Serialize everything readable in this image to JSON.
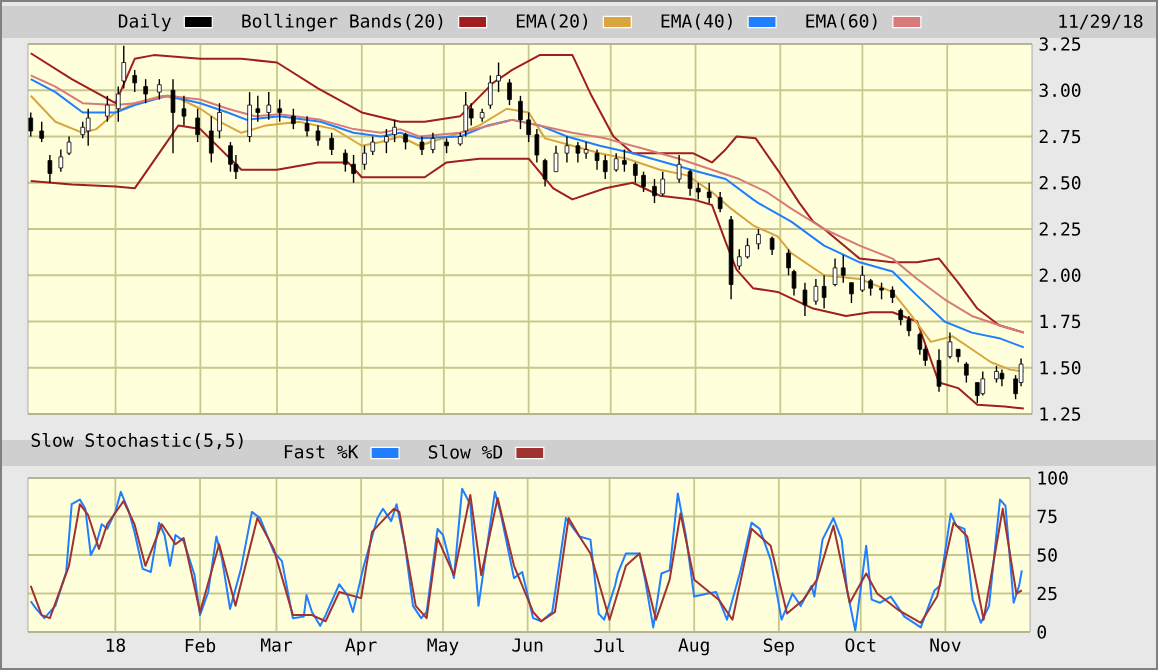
{
  "chart_data": [
    {
      "type": "candlestick",
      "xlim": [
        "2017-11-30",
        "2018-12-02"
      ],
      "xticks": [
        {
          "value": "2018-01-01",
          "label": null
        },
        {
          "value": "2018-02-01",
          "label": null
        },
        {
          "value": "2018-03-01",
          "label": null
        },
        {
          "value": "2018-04-01",
          "label": null
        },
        {
          "value": "2018-05-01",
          "label": null
        },
        {
          "value": "2018-06-01",
          "label": null
        },
        {
          "value": "2018-07-01",
          "label": null
        },
        {
          "value": "2018-08-01",
          "label": null
        },
        {
          "value": "2018-09-01",
          "label": null
        },
        {
          "value": "2018-10-01",
          "label": null
        },
        {
          "value": "2018-11-01",
          "label": null
        }
      ],
      "ylim": [
        1.25,
        3.25
      ],
      "yticks": [
        1.25,
        {
          "value": 1.5,
          "label": "1.50"
        },
        1.75,
        {
          "value": 2,
          "label": "2.00"
        },
        2.25,
        {
          "value": 2.5,
          "label": "2.50"
        },
        2.75,
        {
          "value": 3,
          "label": "3.00"
        },
        3.25
      ],
      "grid": true,
      "legend": "top left",
      "tick_labels": "y",
      "annotations": [
        "11/29/18"
      ],
      "series": [
        {
          "name": "Daily",
          "type": "candlestick",
          "color": "#000000",
          "x": [
            "2017-12-01",
            "2017-12-05",
            "2017-12-08",
            "2017-12-12",
            "2017-12-15",
            "2017-12-20",
            "2017-12-22",
            "2017-12-29",
            "2018-01-02",
            "2018-01-04",
            "2018-01-08",
            "2018-01-12",
            "2018-01-17",
            "2018-01-22",
            "2018-01-26",
            "2018-01-31",
            "2018-02-05",
            "2018-02-08",
            "2018-02-12",
            "2018-02-14",
            "2018-02-19",
            "2018-02-22",
            "2018-02-26",
            "2018-03-02",
            "2018-03-07",
            "2018-03-12",
            "2018-03-16",
            "2018-03-21",
            "2018-03-26",
            "2018-03-29",
            "2018-04-02",
            "2018-04-05",
            "2018-04-10",
            "2018-04-13",
            "2018-04-17",
            "2018-04-23",
            "2018-04-27",
            "2018-05-02",
            "2018-05-07",
            "2018-05-09",
            "2018-05-11",
            "2018-05-15",
            "2018-05-18",
            "2018-05-21",
            "2018-05-25",
            "2018-05-29",
            "2018-06-01",
            "2018-06-04",
            "2018-06-07",
            "2018-06-11",
            "2018-06-15",
            "2018-06-19",
            "2018-06-22",
            "2018-06-26",
            "2018-06-29",
            "2018-07-03",
            "2018-07-06",
            "2018-07-10",
            "2018-07-13",
            "2018-07-17",
            "2018-07-20",
            "2018-07-26",
            "2018-07-30",
            "2018-08-02",
            "2018-08-06",
            "2018-08-10",
            "2018-08-14",
            "2018-08-17",
            "2018-08-20",
            "2018-08-24",
            "2018-08-29",
            "2018-09-04",
            "2018-09-06",
            "2018-09-10",
            "2018-09-14",
            "2018-09-17",
            "2018-09-21",
            "2018-09-24",
            "2018-09-27",
            "2018-10-01",
            "2018-10-04",
            "2018-10-08",
            "2018-10-12",
            "2018-10-15",
            "2018-10-18",
            "2018-10-22",
            "2018-10-24",
            "2018-10-29",
            "2018-11-02",
            "2018-11-05",
            "2018-11-08",
            "2018-11-12",
            "2018-11-14",
            "2018-11-19",
            "2018-11-21",
            "2018-11-26",
            "2018-11-28"
          ],
          "ohlc": [
            [
              2.85,
              2.88,
              2.75,
              2.78
            ],
            [
              2.78,
              2.83,
              2.72,
              2.74
            ],
            [
              2.62,
              2.65,
              2.5,
              2.55
            ],
            [
              2.58,
              2.68,
              2.56,
              2.64
            ],
            [
              2.66,
              2.75,
              2.65,
              2.72
            ],
            [
              2.76,
              2.83,
              2.74,
              2.8
            ],
            [
              2.78,
              2.9,
              2.7,
              2.85
            ],
            [
              2.86,
              2.97,
              2.83,
              2.92
            ],
            [
              2.9,
              3.02,
              2.83,
              2.98
            ],
            [
              3.05,
              3.24,
              3.01,
              3.15
            ],
            [
              3.08,
              3.11,
              2.99,
              3.04
            ],
            [
              3.02,
              3.06,
              2.93,
              2.98
            ],
            [
              2.99,
              3.06,
              2.95,
              3.03
            ],
            [
              3.0,
              3.06,
              2.66,
              2.88
            ],
            [
              2.9,
              2.97,
              2.81,
              2.86
            ],
            [
              2.85,
              2.9,
              2.72,
              2.76
            ],
            [
              2.78,
              2.86,
              2.61,
              2.66
            ],
            [
              2.78,
              2.93,
              2.74,
              2.88
            ],
            [
              2.7,
              2.72,
              2.56,
              2.6
            ],
            [
              2.6,
              2.65,
              2.52,
              2.56
            ],
            [
              2.75,
              2.99,
              2.72,
              2.92
            ],
            [
              2.9,
              2.97,
              2.83,
              2.88
            ],
            [
              2.88,
              2.99,
              2.84,
              2.92
            ],
            [
              2.9,
              2.95,
              2.83,
              2.88
            ],
            [
              2.86,
              2.9,
              2.79,
              2.82
            ],
            [
              2.82,
              2.86,
              2.75,
              2.78
            ],
            [
              2.78,
              2.81,
              2.7,
              2.73
            ],
            [
              2.74,
              2.77,
              2.65,
              2.68
            ],
            [
              2.66,
              2.68,
              2.56,
              2.6
            ],
            [
              2.6,
              2.65,
              2.5,
              2.55
            ],
            [
              2.6,
              2.7,
              2.57,
              2.66
            ],
            [
              2.67,
              2.75,
              2.65,
              2.72
            ],
            [
              2.72,
              2.79,
              2.66,
              2.75
            ],
            [
              2.76,
              2.84,
              2.72,
              2.8
            ],
            [
              2.76,
              2.77,
              2.68,
              2.72
            ],
            [
              2.72,
              2.75,
              2.65,
              2.68
            ],
            [
              2.68,
              2.77,
              2.66,
              2.74
            ],
            [
              2.72,
              2.74,
              2.66,
              2.7
            ],
            [
              2.71,
              2.77,
              2.7,
              2.75
            ],
            [
              2.78,
              2.99,
              2.75,
              2.92
            ],
            [
              2.9,
              2.93,
              2.81,
              2.85
            ],
            [
              2.85,
              2.9,
              2.83,
              2.88
            ],
            [
              2.92,
              3.08,
              2.9,
              3.04
            ],
            [
              3.05,
              3.15,
              2.99,
              3.08
            ],
            [
              3.04,
              3.06,
              2.92,
              2.95
            ],
            [
              2.94,
              2.97,
              2.79,
              2.84
            ],
            [
              2.84,
              2.88,
              2.72,
              2.76
            ],
            [
              2.76,
              2.79,
              2.61,
              2.65
            ],
            [
              2.62,
              2.63,
              2.48,
              2.52
            ],
            [
              2.56,
              2.7,
              2.56,
              2.66
            ],
            [
              2.66,
              2.75,
              2.61,
              2.7
            ],
            [
              2.7,
              2.72,
              2.61,
              2.66
            ],
            [
              2.66,
              2.72,
              2.63,
              2.68
            ],
            [
              2.66,
              2.68,
              2.57,
              2.62
            ],
            [
              2.62,
              2.65,
              2.52,
              2.56
            ],
            [
              2.57,
              2.66,
              2.56,
              2.63
            ],
            [
              2.62,
              2.68,
              2.56,
              2.6
            ],
            [
              2.6,
              2.61,
              2.5,
              2.54
            ],
            [
              2.54,
              2.56,
              2.45,
              2.48
            ],
            [
              2.48,
              2.52,
              2.39,
              2.43
            ],
            [
              2.44,
              2.56,
              2.43,
              2.52
            ],
            [
              2.52,
              2.65,
              2.5,
              2.6
            ],
            [
              2.56,
              2.57,
              2.43,
              2.47
            ],
            [
              2.47,
              2.5,
              2.41,
              2.45
            ],
            [
              2.45,
              2.5,
              2.39,
              2.42
            ],
            [
              2.42,
              2.45,
              2.34,
              2.36
            ],
            [
              2.3,
              2.32,
              1.87,
              1.95
            ],
            [
              2.05,
              2.14,
              2.03,
              2.1
            ],
            [
              2.1,
              2.2,
              2.09,
              2.16
            ],
            [
              2.17,
              2.25,
              2.14,
              2.22
            ],
            [
              2.2,
              2.21,
              2.11,
              2.14
            ],
            [
              2.12,
              2.14,
              2.0,
              2.04
            ],
            [
              2.02,
              2.03,
              1.89,
              1.93
            ],
            [
              1.92,
              1.96,
              1.78,
              1.84
            ],
            [
              1.86,
              1.98,
              1.84,
              1.94
            ],
            [
              1.94,
              2.0,
              1.82,
              1.88
            ],
            [
              1.95,
              2.09,
              1.94,
              2.04
            ],
            [
              2.04,
              2.11,
              1.96,
              2.0
            ],
            [
              1.96,
              1.96,
              1.85,
              1.9
            ],
            [
              1.92,
              2.05,
              1.91,
              2.0
            ],
            [
              1.97,
              1.98,
              1.89,
              1.93
            ],
            [
              1.93,
              1.96,
              1.87,
              1.92
            ],
            [
              1.92,
              1.94,
              1.85,
              1.88
            ],
            [
              1.81,
              1.82,
              1.73,
              1.76
            ],
            [
              1.76,
              1.78,
              1.67,
              1.7
            ],
            [
              1.68,
              1.69,
              1.57,
              1.6
            ],
            [
              1.6,
              1.62,
              1.51,
              1.54
            ],
            [
              1.54,
              1.6,
              1.37,
              1.4
            ],
            [
              1.56,
              1.69,
              1.55,
              1.64
            ],
            [
              1.6,
              1.6,
              1.53,
              1.56
            ],
            [
              1.52,
              1.53,
              1.42,
              1.46
            ],
            [
              1.42,
              1.42,
              1.31,
              1.35
            ],
            [
              1.36,
              1.48,
              1.35,
              1.44
            ],
            [
              1.44,
              1.51,
              1.42,
              1.48
            ],
            [
              1.47,
              1.49,
              1.4,
              1.44
            ],
            [
              1.44,
              1.46,
              1.33,
              1.36
            ],
            [
              1.42,
              1.55,
              1.4,
              1.52
            ]
          ]
        },
        {
          "name": "Bollinger Bands(20)",
          "type": "line",
          "color": "#a01e1e",
          "x": [
            "2017-12-01",
            "2017-12-16",
            "2018-01-01",
            "2018-01-08",
            "2018-01-15",
            "2018-02-01",
            "2018-02-16",
            "2018-03-01",
            "2018-03-16",
            "2018-04-01",
            "2018-04-15",
            "2018-04-24",
            "2018-05-07",
            "2018-05-19",
            "2018-05-26",
            "2018-06-05",
            "2018-06-17",
            "2018-06-24",
            "2018-07-02",
            "2018-07-09",
            "2018-07-31",
            "2018-08-07",
            "2018-08-12",
            "2018-08-16",
            "2018-08-23",
            "2018-08-31",
            "2018-09-08",
            "2018-09-13",
            "2018-09-17",
            "2018-09-30",
            "2018-10-12",
            "2018-10-21",
            "2018-10-29",
            "2018-11-05",
            "2018-11-12",
            "2018-11-20",
            "2018-11-29"
          ],
          "values": [
            3.2,
            3.06,
            2.93,
            3.17,
            3.19,
            3.17,
            3.17,
            3.15,
            3.01,
            2.88,
            2.83,
            2.83,
            2.86,
            3.04,
            3.11,
            3.19,
            3.19,
            2.97,
            2.75,
            2.66,
            2.66,
            2.61,
            2.68,
            2.75,
            2.74,
            2.57,
            2.39,
            2.29,
            2.25,
            2.09,
            2.07,
            2.07,
            2.09,
            1.96,
            1.82,
            1.73,
            1.69
          ]
        },
        {
          "type": "line",
          "color": "#a01e1e",
          "x": [
            "2017-12-01",
            "2017-12-16",
            "2018-01-01",
            "2018-01-08",
            "2018-01-24",
            "2018-02-01",
            "2018-02-16",
            "2018-03-01",
            "2018-03-16",
            "2018-03-27",
            "2018-04-01",
            "2018-04-15",
            "2018-04-24",
            "2018-05-02",
            "2018-05-14",
            "2018-06-01",
            "2018-06-10",
            "2018-06-17",
            "2018-06-29",
            "2018-07-09",
            "2018-07-19",
            "2018-07-31",
            "2018-08-07",
            "2018-08-12",
            "2018-08-16",
            "2018-08-22",
            "2018-08-31",
            "2018-09-13",
            "2018-09-25",
            "2018-10-04",
            "2018-10-12",
            "2018-10-21",
            "2018-10-29",
            "2018-11-05",
            "2018-11-12",
            "2018-11-22",
            "2018-11-29"
          ],
          "values": [
            2.51,
            2.49,
            2.48,
            2.47,
            2.81,
            2.79,
            2.57,
            2.57,
            2.61,
            2.61,
            2.53,
            2.53,
            2.53,
            2.61,
            2.63,
            2.63,
            2.47,
            2.41,
            2.47,
            2.5,
            2.43,
            2.41,
            2.38,
            2.18,
            2.03,
            1.93,
            1.91,
            1.82,
            1.78,
            1.8,
            1.8,
            1.75,
            1.42,
            1.39,
            1.3,
            1.29,
            1.28
          ]
        },
        {
          "name": "EMA(20)",
          "type": "line",
          "color": "#d9a53f",
          "x": [
            "2017-12-01",
            "2017-12-10",
            "2017-12-20",
            "2017-12-25",
            "2018-01-01",
            "2018-01-08",
            "2018-01-18",
            "2018-01-25",
            "2018-02-01",
            "2018-02-08",
            "2018-02-16",
            "2018-02-25",
            "2018-03-09",
            "2018-03-22",
            "2018-04-01",
            "2018-04-08",
            "2018-04-15",
            "2018-04-22",
            "2018-05-07",
            "2018-05-14",
            "2018-05-24",
            "2018-06-01",
            "2018-06-07",
            "2018-06-17",
            "2018-06-27",
            "2018-07-07",
            "2018-07-19",
            "2018-07-29",
            "2018-08-07",
            "2018-08-14",
            "2018-08-22",
            "2018-08-31",
            "2018-09-05",
            "2018-09-17",
            "2018-09-30",
            "2018-10-12",
            "2018-10-19",
            "2018-10-26",
            "2018-11-03",
            "2018-11-10",
            "2018-11-17",
            "2018-11-24",
            "2018-11-29"
          ],
          "values": [
            2.97,
            2.83,
            2.77,
            2.79,
            2.88,
            2.93,
            2.97,
            2.95,
            2.9,
            2.83,
            2.77,
            2.81,
            2.83,
            2.79,
            2.7,
            2.72,
            2.75,
            2.7,
            2.77,
            2.81,
            2.9,
            2.88,
            2.74,
            2.7,
            2.66,
            2.63,
            2.57,
            2.54,
            2.45,
            2.36,
            2.27,
            2.21,
            2.12,
            2.0,
            1.98,
            1.91,
            1.78,
            1.64,
            1.67,
            1.6,
            1.53,
            1.49,
            1.48
          ]
        },
        {
          "name": "EMA(40)",
          "type": "line",
          "color": "#1f7fff",
          "x": [
            "2017-12-01",
            "2017-12-10",
            "2017-12-20",
            "2018-01-01",
            "2018-01-08",
            "2018-01-20",
            "2018-02-01",
            "2018-02-11",
            "2018-02-18",
            "2018-03-02",
            "2018-03-17",
            "2018-03-29",
            "2018-04-08",
            "2018-04-15",
            "2018-04-22",
            "2018-05-07",
            "2018-05-17",
            "2018-05-26",
            "2018-06-05",
            "2018-06-15",
            "2018-06-27",
            "2018-07-09",
            "2018-07-21",
            "2018-08-02",
            "2018-08-12",
            "2018-08-22",
            "2018-08-24",
            "2018-09-05",
            "2018-09-17",
            "2018-09-30",
            "2018-10-12",
            "2018-10-21",
            "2018-10-31",
            "2018-11-10",
            "2018-11-20",
            "2018-11-29"
          ],
          "values": [
            3.06,
            2.99,
            2.88,
            2.88,
            2.92,
            2.97,
            2.93,
            2.88,
            2.84,
            2.86,
            2.83,
            2.77,
            2.75,
            2.77,
            2.74,
            2.75,
            2.81,
            2.84,
            2.81,
            2.75,
            2.7,
            2.66,
            2.61,
            2.56,
            2.52,
            2.41,
            2.39,
            2.29,
            2.16,
            2.07,
            2.02,
            1.89,
            1.75,
            1.69,
            1.66,
            1.61
          ]
        },
        {
          "name": "EMA(60)",
          "type": "line",
          "color": "#d97a7a",
          "x": [
            "2017-12-01",
            "2017-12-10",
            "2017-12-20",
            "2018-01-01",
            "2018-01-08",
            "2018-01-20",
            "2018-02-01",
            "2018-02-11",
            "2018-02-21",
            "2018-03-02",
            "2018-03-17",
            "2018-03-29",
            "2018-04-08",
            "2018-04-15",
            "2018-04-22",
            "2018-05-07",
            "2018-05-26",
            "2018-06-05",
            "2018-06-17",
            "2018-06-29",
            "2018-07-14",
            "2018-07-26",
            "2018-08-07",
            "2018-08-17",
            "2018-08-27",
            "2018-09-05",
            "2018-09-17",
            "2018-09-30",
            "2018-10-12",
            "2018-10-21",
            "2018-10-31",
            "2018-11-10",
            "2018-11-20",
            "2018-11-29"
          ],
          "values": [
            3.08,
            3.02,
            2.93,
            2.92,
            2.93,
            2.97,
            2.95,
            2.9,
            2.86,
            2.87,
            2.84,
            2.79,
            2.77,
            2.79,
            2.75,
            2.77,
            2.84,
            2.81,
            2.77,
            2.74,
            2.68,
            2.63,
            2.57,
            2.52,
            2.45,
            2.36,
            2.25,
            2.16,
            2.09,
            1.98,
            1.87,
            1.78,
            1.73,
            1.69
          ]
        }
      ]
    },
    {
      "type": "line",
      "title": "Slow Stochastic(5,5)",
      "xlim": [
        "2017-11-30",
        "2018-12-02"
      ],
      "xticks": [
        {
          "value": "2018-01-01",
          "label": "18"
        },
        {
          "value": "2018-02-01",
          "label": "Feb"
        },
        {
          "value": "2018-03-01",
          "label": "Mar"
        },
        {
          "value": "2018-04-01",
          "label": "Apr"
        },
        {
          "value": "2018-05-01",
          "label": "May"
        },
        {
          "value": "2018-06-01",
          "label": "Jun"
        },
        {
          "value": "2018-07-01",
          "label": "Jul"
        },
        {
          "value": "2018-08-01",
          "label": "Aug"
        },
        {
          "value": "2018-09-01",
          "label": "Sep"
        },
        {
          "value": "2018-10-01",
          "label": "Oct"
        },
        {
          "value": "2018-11-01",
          "label": "Nov"
        }
      ],
      "ylim": [
        0,
        100
      ],
      "yticks": [
        0,
        25,
        50,
        75,
        100
      ],
      "grid": true,
      "legend": "top left",
      "series": [
        {
          "name": "Fast %K",
          "color": "#1f7fff",
          "x": [
            "2017-12-01",
            "2017-12-03",
            "2017-12-06",
            "2017-12-10",
            "2017-12-14",
            "2017-12-16",
            "2017-12-19",
            "2017-12-21",
            "2017-12-23",
            "2017-12-25",
            "2017-12-27",
            "2017-12-29",
            "2018-01-01",
            "2018-01-03",
            "2018-01-06",
            "2018-01-08",
            "2018-01-11",
            "2018-01-14",
            "2018-01-17",
            "2018-01-19",
            "2018-01-21",
            "2018-01-23",
            "2018-01-26",
            "2018-01-30",
            "2018-02-01",
            "2018-02-04",
            "2018-02-07",
            "2018-02-09",
            "2018-02-12",
            "2018-02-16",
            "2018-02-20",
            "2018-02-23",
            "2018-02-28",
            "2018-03-03",
            "2018-03-07",
            "2018-03-11",
            "2018-03-12",
            "2018-03-14",
            "2018-03-17",
            "2018-03-19",
            "2018-03-24",
            "2018-03-27",
            "2018-03-29",
            "2018-04-02",
            "2018-04-07",
            "2018-04-09",
            "2018-04-12",
            "2018-04-14",
            "2018-04-17",
            "2018-04-20",
            "2018-04-23",
            "2018-04-25",
            "2018-04-29",
            "2018-05-01",
            "2018-05-05",
            "2018-05-08",
            "2018-05-11",
            "2018-05-14",
            "2018-05-20",
            "2018-05-22",
            "2018-05-27",
            "2018-05-30",
            "2018-06-03",
            "2018-06-06",
            "2018-06-10",
            "2018-06-15",
            "2018-06-20",
            "2018-06-24",
            "2018-06-27",
            "2018-06-29",
            "2018-07-03",
            "2018-07-04",
            "2018-07-07",
            "2018-07-12",
            "2018-07-14",
            "2018-07-17",
            "2018-07-20",
            "2018-07-23",
            "2018-07-26",
            "2018-07-29",
            "2018-08-01",
            "2018-08-06",
            "2018-08-09",
            "2018-08-13",
            "2018-08-18",
            "2018-08-22",
            "2018-08-25",
            "2018-08-29",
            "2018-09-02",
            "2018-09-06",
            "2018-09-09",
            "2018-09-13",
            "2018-09-14",
            "2018-09-17",
            "2018-09-21",
            "2018-09-24",
            "2018-09-26",
            "2018-09-29",
            "2018-10-03",
            "2018-10-05",
            "2018-10-08",
            "2018-10-12",
            "2018-10-17",
            "2018-10-23",
            "2018-10-28",
            "2018-10-30",
            "2018-11-03",
            "2018-11-05",
            "2018-11-08",
            "2018-11-11",
            "2018-11-14",
            "2018-11-17",
            "2018-11-21",
            "2018-11-23",
            "2018-11-26",
            "2018-11-28",
            "2018-11-29"
          ],
          "values": [
            20,
            15,
            9,
            17,
            39,
            83,
            86,
            80,
            50,
            57,
            70,
            67,
            78,
            91,
            78,
            65,
            41,
            39,
            71,
            63,
            43,
            63,
            59,
            37,
            11,
            26,
            62,
            48,
            15,
            41,
            78,
            74,
            52,
            46,
            9,
            10,
            24,
            13,
            4,
            11,
            31,
            24,
            13,
            43,
            74,
            80,
            72,
            83,
            57,
            17,
            9,
            13,
            67,
            63,
            35,
            93,
            83,
            17,
            91,
            78,
            35,
            39,
            9,
            7,
            13,
            74,
            62,
            60,
            12,
            8,
            30,
            38,
            51,
            51,
            34,
            3,
            38,
            40,
            90,
            62,
            23,
            25,
            26,
            8,
            40,
            71,
            67,
            47,
            8,
            25,
            17,
            30,
            23,
            60,
            74,
            60,
            27,
            1,
            56,
            21,
            19,
            23,
            10,
            3,
            27,
            30,
            77,
            69,
            67,
            21,
            6,
            17,
            86,
            82,
            19,
            30,
            40
          ]
        },
        {
          "name": "Slow %D",
          "color": "#a03232",
          "x": [
            "2017-12-01",
            "2017-12-05",
            "2017-12-08",
            "2017-12-15",
            "2017-12-19",
            "2017-12-22",
            "2017-12-26",
            "2017-12-29",
            "2018-01-04",
            "2018-01-08",
            "2018-01-12",
            "2018-01-18",
            "2018-01-23",
            "2018-01-26",
            "2018-02-01",
            "2018-02-08",
            "2018-02-14",
            "2018-02-22",
            "2018-02-28",
            "2018-03-07",
            "2018-03-14",
            "2018-03-19",
            "2018-03-24",
            "2018-04-01",
            "2018-04-05",
            "2018-04-13",
            "2018-04-15",
            "2018-04-21",
            "2018-04-25",
            "2018-04-29",
            "2018-05-05",
            "2018-05-11",
            "2018-05-15",
            "2018-05-21",
            "2018-05-27",
            "2018-06-03",
            "2018-06-06",
            "2018-06-11",
            "2018-06-16",
            "2018-06-20",
            "2018-06-24",
            "2018-07-01",
            "2018-07-07",
            "2018-07-12",
            "2018-07-18",
            "2018-07-23",
            "2018-07-27",
            "2018-08-01",
            "2018-08-10",
            "2018-08-15",
            "2018-08-22",
            "2018-08-29",
            "2018-09-04",
            "2018-09-10",
            "2018-09-15",
            "2018-09-21",
            "2018-09-27",
            "2018-10-03",
            "2018-10-07",
            "2018-10-15",
            "2018-10-23",
            "2018-10-29",
            "2018-11-04",
            "2018-11-09",
            "2018-11-15",
            "2018-11-22",
            "2018-11-27",
            "2018-11-29"
          ],
          "values": [
            30,
            11,
            9,
            43,
            83,
            76,
            54,
            70,
            85,
            70,
            43,
            70,
            57,
            61,
            13,
            57,
            17,
            74,
            54,
            11,
            11,
            7,
            26,
            22,
            65,
            80,
            78,
            17,
            9,
            61,
            37,
            89,
            37,
            87,
            43,
            13,
            7,
            13,
            74,
            62,
            51,
            8,
            43,
            51,
            8,
            34,
            77,
            34,
            21,
            8,
            67,
            56,
            12,
            21,
            34,
            69,
            19,
            38,
            25,
            14,
            6,
            23,
            71,
            62,
            8,
            80,
            25,
            27
          ]
        }
      ]
    }
  ]
}
